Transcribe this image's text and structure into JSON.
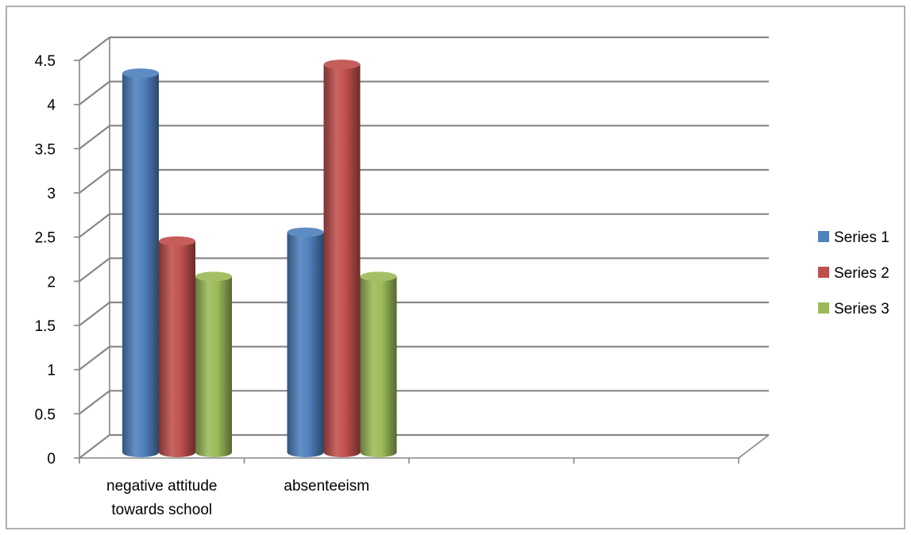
{
  "chart_data": {
    "type": "bar",
    "title": "",
    "xlabel": "",
    "ylabel": "",
    "categories": [
      [
        "negative attitude",
        "towards school"
      ],
      [
        "absenteeism"
      ],
      [
        ""
      ],
      [
        ""
      ]
    ],
    "series": [
      {
        "name": "Series 1",
        "color": "#4F81BD",
        "values": [
          4.3,
          2.5,
          null,
          null
        ]
      },
      {
        "name": "Series 2",
        "color": "#C0504D",
        "values": [
          2.4,
          4.4,
          null,
          null
        ]
      },
      {
        "name": "Series 3",
        "color": "#9BBB59",
        "values": [
          2.0,
          2.0,
          null,
          null
        ]
      }
    ],
    "ylim": [
      0,
      4.5
    ],
    "yticks": [
      "0",
      "0.5",
      "1",
      "1.5",
      "2",
      "2.5",
      "3",
      "3.5",
      "4",
      "4.5"
    ],
    "grid": true,
    "legend_position": "right"
  }
}
